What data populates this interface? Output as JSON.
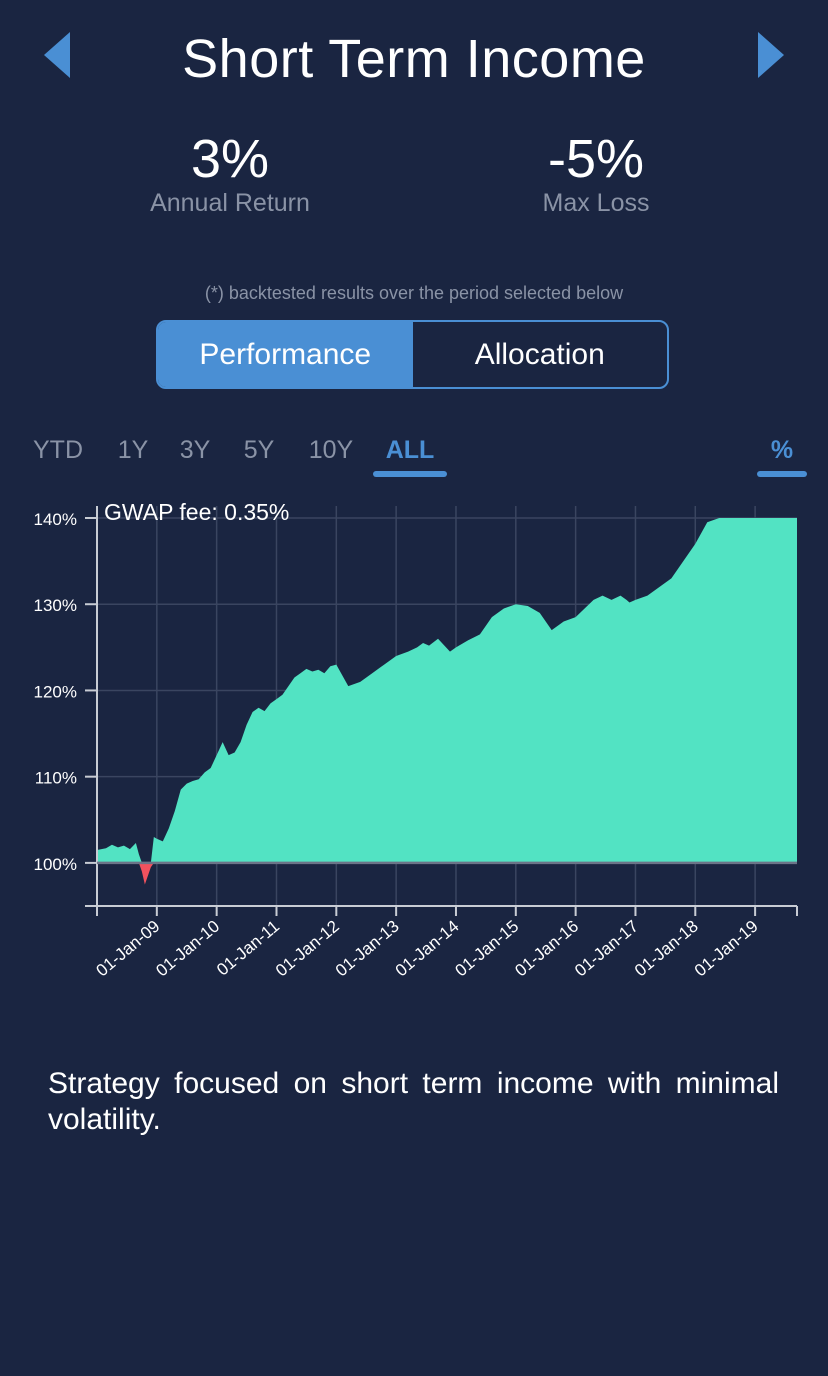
{
  "header": {
    "title": "Short Term Income"
  },
  "stats": {
    "annual_return": {
      "value": "3%",
      "label": "Annual Return"
    },
    "max_loss": {
      "value": "-5%",
      "label": "Max Loss"
    }
  },
  "note": "(*) backtested results over the period selected below",
  "tabs": {
    "performance": "Performance",
    "allocation": "Allocation"
  },
  "periods": [
    "YTD",
    "1Y",
    "3Y",
    "5Y",
    "10Y",
    "ALL"
  ],
  "selected_period": "ALL",
  "unit_toggle": "%",
  "fee_label": "GWAP fee: 0.35%",
  "description": "Strategy focused on short term income with minimal volatility.",
  "colors": {
    "background": "#1a2541",
    "accent": "#4a8fd4",
    "gain": "#52e3c3",
    "loss": "#f1525e"
  },
  "chart_data": {
    "type": "area",
    "baseline": 100,
    "ylim": [
      95,
      140
    ],
    "yticks": [
      "100%",
      "110%",
      "120%",
      "130%",
      "140%"
    ],
    "ytick_values": [
      100,
      110,
      120,
      130,
      140
    ],
    "xtick_labels": [
      "01-Jan-09",
      "01-Jan-10",
      "01-Jan-11",
      "01-Jan-12",
      "01-Jan-13",
      "01-Jan-14",
      "01-Jan-15",
      "01-Jan-16",
      "01-Jan-17",
      "01-Jan-18",
      "01-Jan-19"
    ],
    "xtick_values": [
      2009,
      2010,
      2011,
      2012,
      2013,
      2014,
      2015,
      2016,
      2017,
      2018,
      2019
    ],
    "xlim": [
      2008.0,
      2019.7
    ],
    "series": [
      {
        "x": [
          2008.0,
          2008.15,
          2008.25,
          2008.35,
          2008.45,
          2008.55,
          2008.65,
          2008.7,
          2008.75,
          2008.8,
          2008.85,
          2008.9,
          2008.95,
          2009.0,
          2009.1,
          2009.2,
          2009.3,
          2009.4,
          2009.5,
          2009.6,
          2009.7,
          2009.8,
          2009.9,
          2010.0,
          2010.1,
          2010.2,
          2010.3,
          2010.4,
          2010.5,
          2010.6,
          2010.7,
          2010.8,
          2010.9,
          2011.0,
          2011.1,
          2011.2,
          2011.3,
          2011.4,
          2011.5,
          2011.6,
          2011.7,
          2011.8,
          2011.9,
          2012.0,
          2012.2,
          2012.4,
          2012.6,
          2012.8,
          2013.0,
          2013.2,
          2013.35,
          2013.45,
          2013.55,
          2013.7,
          2013.9,
          2014.0,
          2014.2,
          2014.4,
          2014.6,
          2014.8,
          2015.0,
          2015.2,
          2015.4,
          2015.6,
          2015.8,
          2016.0,
          2016.15,
          2016.3,
          2016.45,
          2016.6,
          2016.75,
          2016.85,
          2016.9,
          2017.0,
          2017.2,
          2017.4,
          2017.6,
          2017.8,
          2018.0,
          2018.2,
          2018.4,
          2018.6,
          2018.75,
          2018.85,
          2019.0,
          2019.15,
          2019.3,
          2019.45,
          2019.55,
          2019.65,
          2019.7
        ],
        "y": [
          101.5,
          101.7,
          102.1,
          101.8,
          102.0,
          101.6,
          102.3,
          101.0,
          99.0,
          97.5,
          98.5,
          99.5,
          103.0,
          102.8,
          102.5,
          104.0,
          106.0,
          108.5,
          109.2,
          109.5,
          109.7,
          110.5,
          111.0,
          112.5,
          114.0,
          112.5,
          112.8,
          114.0,
          116.0,
          117.5,
          118.0,
          117.6,
          118.5,
          119.0,
          119.5,
          120.5,
          121.5,
          122.0,
          122.5,
          122.2,
          122.4,
          122.0,
          122.8,
          123.0,
          120.5,
          121.0,
          122.0,
          123.0,
          124.0,
          124.5,
          125.0,
          125.5,
          125.2,
          126.0,
          124.5,
          125.0,
          125.8,
          126.5,
          128.5,
          129.5,
          130.0,
          129.8,
          129.0,
          127.0,
          128.0,
          128.5,
          129.5,
          130.5,
          131.0,
          130.5,
          131.0,
          130.5,
          130.2,
          130.5,
          131.0,
          132.0,
          133.0,
          135.0,
          137.0,
          139.5,
          140.0,
          140.0,
          140.0,
          140.0,
          140.0,
          140.0,
          140.0,
          140.0,
          140.0,
          140.0,
          140.0
        ]
      }
    ]
  }
}
